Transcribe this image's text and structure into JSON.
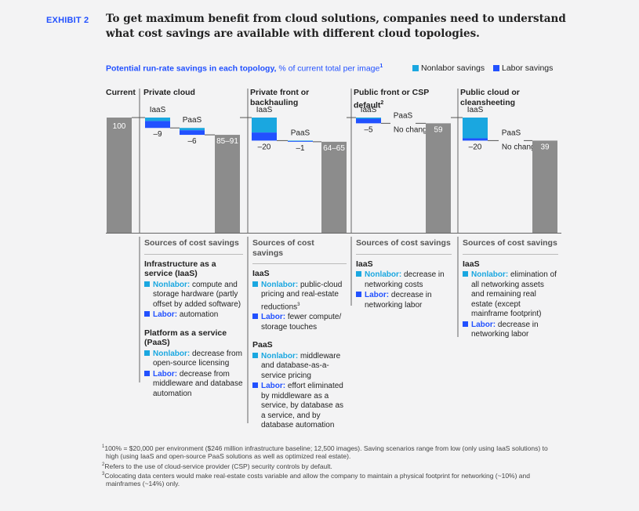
{
  "exhibit_label": "EXHIBIT 2",
  "headline": "To get maximum benefit from cloud solutions, companies need to understand what cost savings are available with different cloud topologies.",
  "subtitle": {
    "main": "Potential run-rate savings in each topology,",
    "unit": " % of current total per image",
    "sup": "1"
  },
  "legend": [
    {
      "label": "Nonlabor savings",
      "color": "#1aa7e0"
    },
    {
      "label": "Labor savings",
      "color": "#2251ff"
    }
  ],
  "colors": {
    "nonlabor": "#1aa7e0",
    "labor": "#2251ff",
    "total": "#8c8c8c"
  },
  "current_label": "Current",
  "current_value_label": "100",
  "columns": [
    {
      "title": "Private cloud",
      "sup": ""
    },
    {
      "title": "Private front or backhauling",
      "sup": ""
    },
    {
      "title": "Public front or CSP default",
      "sup": "2"
    },
    {
      "title": "Public cloud or cleansheeting",
      "sup": ""
    }
  ],
  "chart_data": {
    "type": "waterfall",
    "unit": "% of current total per image",
    "start": {
      "label": "Current",
      "value": 100
    },
    "scenarios": [
      {
        "name": "Private cloud",
        "steps": [
          {
            "label": "IaaS",
            "value_label": "–9",
            "value": -9,
            "labor": 6,
            "nonlabor": 3
          },
          {
            "label": "PaaS",
            "value_label": "–6",
            "value": -6,
            "labor": 4,
            "nonlabor": 2
          }
        ],
        "result": "85–91",
        "result_value": 85
      },
      {
        "name": "Private front or backhauling",
        "steps": [
          {
            "label": "IaaS",
            "value_label": "–20",
            "value": -20,
            "labor": 7,
            "nonlabor": 13
          },
          {
            "label": "PaaS",
            "value_label": "–1",
            "value": -1,
            "labor": 0.6,
            "nonlabor": 0.4
          }
        ],
        "result": "64–65",
        "result_value": 64
      },
      {
        "name": "Public front or CSP default",
        "steps": [
          {
            "label": "IaaS",
            "value_label": "–5",
            "value": -5,
            "labor": 4,
            "nonlabor": 1
          },
          {
            "label": "PaaS",
            "value_label": "No change",
            "value": 0,
            "labor": 0,
            "nonlabor": 0
          }
        ],
        "result": "59",
        "result_value": 59
      },
      {
        "name": "Public cloud or cleansheeting",
        "steps": [
          {
            "label": "IaaS",
            "value_label": "–20",
            "value": -20,
            "labor": 2,
            "nonlabor": 18
          },
          {
            "label": "PaaS",
            "value_label": "No change",
            "value": 0,
            "labor": 0,
            "nonlabor": 0
          }
        ],
        "result": "39",
        "result_value": 39
      }
    ]
  },
  "sources": {
    "heading": "Sources of cost savings",
    "col1": {
      "iaas_title": "Infrastructure as a service (IaaS)",
      "iaas_nl_label": "Nonlabor:",
      "iaas_nl_text": " compute and storage hardware (partly offset by added software)",
      "iaas_lb_label": "Labor:",
      "iaas_lb_text": " automation",
      "paas_title": "Platform as a service (PaaS)",
      "paas_nl_label": "Nonlabor:",
      "paas_nl_text": " decrease from open-source licensing",
      "paas_lb_label": "Labor:",
      "paas_lb_text": " decrease from middleware and database automation"
    },
    "col2": {
      "iaas_title": "IaaS",
      "iaas_nl_label": "Nonlabor:",
      "iaas_nl_text": " public-cloud pricing and real-estate reductions",
      "iaas_nl_sup": "3",
      "iaas_lb_label": "Labor:",
      "iaas_lb_text": " fewer compute/ storage touches",
      "paas_title": "PaaS",
      "paas_nl_label": "Nonlabor:",
      "paas_nl_text": " middleware and database-as-a-service pricing",
      "paas_lb_label": "Labor:",
      "paas_lb_text": " effort eliminated by middleware as a service, by database as a service, and by database automation"
    },
    "col3": {
      "iaas_title": "IaaS",
      "iaas_nl_label": "Nonlabor:",
      "iaas_nl_text": " decrease in networking costs",
      "iaas_lb_label": "Labor:",
      "iaas_lb_text": " decrease in networking labor"
    },
    "col4": {
      "iaas_title": "IaaS",
      "iaas_nl_label": "Nonlabor:",
      "iaas_nl_text": " elimination of all networking assets and remaining real estate (except mainframe footprint)",
      "iaas_lb_label": "Labor:",
      "iaas_lb_text": " decrease in networking labor"
    }
  },
  "footnotes": [
    {
      "sup": "1",
      "text": "100% = $20,000 per environment ($246 million infrastructure baseline; 12,500 images). Saving scenarios range from low (only using IaaS solutions) to high (using IaaS and open-source PaaS solutions as well as optimized real estate)."
    },
    {
      "sup": "2",
      "text": "Refers to the use of cloud-service provider (CSP) security controls by default."
    },
    {
      "sup": "3",
      "text": "Colocating data centers would make real-estate costs variable and allow the company to maintain a physical footprint for networking (~10%) and mainframes (~14%) only."
    }
  ]
}
